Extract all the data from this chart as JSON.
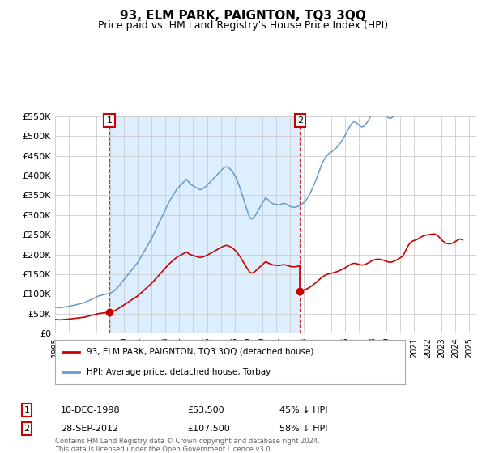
{
  "title": "93, ELM PARK, PAIGNTON, TQ3 3QQ",
  "subtitle": "Price paid vs. HM Land Registry's House Price Index (HPI)",
  "title_fontsize": 11,
  "subtitle_fontsize": 9,
  "ylim": [
    0,
    550000
  ],
  "yticks": [
    0,
    50000,
    100000,
    150000,
    200000,
    250000,
    300000,
    350000,
    400000,
    450000,
    500000,
    550000
  ],
  "ytick_labels": [
    "£0",
    "£50K",
    "£100K",
    "£150K",
    "£200K",
    "£250K",
    "£300K",
    "£350K",
    "£400K",
    "£450K",
    "£500K",
    "£550K"
  ],
  "xlim_start": 1995.0,
  "xlim_end": 2025.5,
  "sale1_x": 1998.94,
  "sale1_y": 53500,
  "sale2_x": 2012.74,
  "sale2_y": 107500,
  "property_line_color": "#cc0000",
  "hpi_line_color": "#6699cc",
  "shade_color": "#ddeeff",
  "background_color": "#ffffff",
  "grid_color": "#cccccc",
  "legend_property": "93, ELM PARK, PAIGNTON, TQ3 3QQ (detached house)",
  "legend_hpi": "HPI: Average price, detached house, Torbay",
  "footer1": "Contains HM Land Registry data © Crown copyright and database right 2024.",
  "footer2": "This data is licensed under the Open Government Licence v3.0.",
  "table_row1": [
    "1",
    "10-DEC-1998",
    "£53,500",
    "45% ↓ HPI"
  ],
  "table_row2": [
    "2",
    "28-SEP-2012",
    "£107,500",
    "58% ↓ HPI"
  ],
  "hpi_index": [
    [
      1995.0,
      47.2
    ],
    [
      1995.08,
      46.9
    ],
    [
      1995.17,
      46.7
    ],
    [
      1995.25,
      46.5
    ],
    [
      1995.33,
      46.3
    ],
    [
      1995.42,
      46.5
    ],
    [
      1995.5,
      46.8
    ],
    [
      1995.58,
      47.1
    ],
    [
      1995.67,
      47.4
    ],
    [
      1995.75,
      47.7
    ],
    [
      1995.83,
      48.0
    ],
    [
      1995.92,
      48.4
    ],
    [
      1996.0,
      48.8
    ],
    [
      1996.08,
      49.2
    ],
    [
      1996.17,
      49.6
    ],
    [
      1996.25,
      50.1
    ],
    [
      1996.33,
      50.6
    ],
    [
      1996.42,
      51.1
    ],
    [
      1996.5,
      51.6
    ],
    [
      1996.58,
      52.1
    ],
    [
      1996.67,
      52.6
    ],
    [
      1996.75,
      53.1
    ],
    [
      1996.83,
      53.6
    ],
    [
      1996.92,
      54.1
    ],
    [
      1997.0,
      54.6
    ],
    [
      1997.08,
      55.2
    ],
    [
      1997.17,
      55.8
    ],
    [
      1997.25,
      56.8
    ],
    [
      1997.33,
      57.8
    ],
    [
      1997.42,
      58.8
    ],
    [
      1997.5,
      59.8
    ],
    [
      1997.58,
      60.8
    ],
    [
      1997.67,
      61.8
    ],
    [
      1997.75,
      62.8
    ],
    [
      1997.83,
      63.8
    ],
    [
      1997.92,
      64.8
    ],
    [
      1998.0,
      65.8
    ],
    [
      1998.08,
      66.8
    ],
    [
      1998.17,
      67.8
    ],
    [
      1998.25,
      68.3
    ],
    [
      1998.33,
      68.8
    ],
    [
      1998.42,
      69.3
    ],
    [
      1998.5,
      69.8
    ],
    [
      1998.58,
      70.3
    ],
    [
      1998.67,
      70.8
    ],
    [
      1998.75,
      71.3
    ],
    [
      1998.83,
      71.8
    ],
    [
      1998.92,
      72.3
    ],
    [
      1999.0,
      72.8
    ],
    [
      1999.08,
      73.8
    ],
    [
      1999.17,
      74.8
    ],
    [
      1999.25,
      76.3
    ],
    [
      1999.33,
      78.0
    ],
    [
      1999.42,
      80.0
    ],
    [
      1999.5,
      82.3
    ],
    [
      1999.58,
      84.7
    ],
    [
      1999.67,
      87.2
    ],
    [
      1999.75,
      89.8
    ],
    [
      1999.83,
      92.4
    ],
    [
      1999.92,
      95.0
    ],
    [
      2000.0,
      97.6
    ],
    [
      2000.08,
      100.2
    ],
    [
      2000.17,
      102.8
    ],
    [
      2000.25,
      105.4
    ],
    [
      2000.33,
      108.0
    ],
    [
      2000.42,
      110.6
    ],
    [
      2000.5,
      113.2
    ],
    [
      2000.58,
      115.8
    ],
    [
      2000.67,
      118.4
    ],
    [
      2000.75,
      121.0
    ],
    [
      2000.83,
      123.6
    ],
    [
      2000.92,
      126.2
    ],
    [
      2001.0,
      128.8
    ],
    [
      2001.08,
      132.4
    ],
    [
      2001.17,
      136.0
    ],
    [
      2001.25,
      139.6
    ],
    [
      2001.33,
      143.2
    ],
    [
      2001.42,
      146.8
    ],
    [
      2001.5,
      150.4
    ],
    [
      2001.58,
      154.0
    ],
    [
      2001.67,
      157.6
    ],
    [
      2001.75,
      161.2
    ],
    [
      2001.83,
      164.8
    ],
    [
      2001.92,
      168.4
    ],
    [
      2002.0,
      172.0
    ],
    [
      2002.08,
      176.4
    ],
    [
      2002.17,
      180.8
    ],
    [
      2002.25,
      185.2
    ],
    [
      2002.33,
      189.6
    ],
    [
      2002.42,
      194.0
    ],
    [
      2002.5,
      198.4
    ],
    [
      2002.58,
      202.8
    ],
    [
      2002.67,
      207.2
    ],
    [
      2002.75,
      211.6
    ],
    [
      2002.83,
      216.0
    ],
    [
      2002.92,
      220.4
    ],
    [
      2003.0,
      224.8
    ],
    [
      2003.08,
      229.2
    ],
    [
      2003.17,
      233.6
    ],
    [
      2003.25,
      238.0
    ],
    [
      2003.33,
      241.4
    ],
    [
      2003.42,
      244.8
    ],
    [
      2003.5,
      248.2
    ],
    [
      2003.58,
      251.6
    ],
    [
      2003.67,
      255.0
    ],
    [
      2003.75,
      258.4
    ],
    [
      2003.83,
      261.8
    ],
    [
      2003.92,
      263.8
    ],
    [
      2004.0,
      265.8
    ],
    [
      2004.08,
      268.0
    ],
    [
      2004.17,
      270.2
    ],
    [
      2004.25,
      272.4
    ],
    [
      2004.33,
      274.6
    ],
    [
      2004.42,
      276.8
    ],
    [
      2004.5,
      279.0
    ],
    [
      2004.58,
      276.8
    ],
    [
      2004.67,
      274.0
    ],
    [
      2004.75,
      271.2
    ],
    [
      2004.83,
      269.6
    ],
    [
      2004.92,
      268.2
    ],
    [
      2005.0,
      267.0
    ],
    [
      2005.08,
      265.8
    ],
    [
      2005.17,
      264.6
    ],
    [
      2005.25,
      263.4
    ],
    [
      2005.33,
      262.2
    ],
    [
      2005.42,
      261.0
    ],
    [
      2005.5,
      260.0
    ],
    [
      2005.58,
      261.0
    ],
    [
      2005.67,
      262.0
    ],
    [
      2005.75,
      263.0
    ],
    [
      2005.83,
      264.6
    ],
    [
      2005.92,
      266.2
    ],
    [
      2006.0,
      267.8
    ],
    [
      2006.08,
      270.0
    ],
    [
      2006.17,
      272.2
    ],
    [
      2006.25,
      274.4
    ],
    [
      2006.33,
      276.6
    ],
    [
      2006.42,
      278.8
    ],
    [
      2006.5,
      281.0
    ],
    [
      2006.58,
      283.2
    ],
    [
      2006.67,
      285.4
    ],
    [
      2006.75,
      287.6
    ],
    [
      2006.83,
      289.8
    ],
    [
      2006.92,
      292.0
    ],
    [
      2007.0,
      294.2
    ],
    [
      2007.08,
      296.4
    ],
    [
      2007.17,
      298.6
    ],
    [
      2007.25,
      300.2
    ],
    [
      2007.33,
      301.2
    ],
    [
      2007.42,
      301.8
    ],
    [
      2007.5,
      301.0
    ],
    [
      2007.58,
      299.6
    ],
    [
      2007.67,
      297.8
    ],
    [
      2007.75,
      295.6
    ],
    [
      2007.83,
      293.0
    ],
    [
      2007.92,
      290.0
    ],
    [
      2008.0,
      286.6
    ],
    [
      2008.08,
      282.6
    ],
    [
      2008.17,
      278.0
    ],
    [
      2008.25,
      272.8
    ],
    [
      2008.33,
      267.2
    ],
    [
      2008.42,
      261.2
    ],
    [
      2008.5,
      255.0
    ],
    [
      2008.58,
      248.6
    ],
    [
      2008.67,
      242.0
    ],
    [
      2008.75,
      235.4
    ],
    [
      2008.83,
      228.8
    ],
    [
      2008.92,
      222.2
    ],
    [
      2009.0,
      215.8
    ],
    [
      2009.08,
      211.0
    ],
    [
      2009.17,
      208.0
    ],
    [
      2009.25,
      207.0
    ],
    [
      2009.33,
      208.0
    ],
    [
      2009.42,
      210.4
    ],
    [
      2009.5,
      213.6
    ],
    [
      2009.58,
      217.2
    ],
    [
      2009.67,
      220.8
    ],
    [
      2009.75,
      224.4
    ],
    [
      2009.83,
      228.0
    ],
    [
      2009.92,
      231.6
    ],
    [
      2010.0,
      235.2
    ],
    [
      2010.08,
      238.8
    ],
    [
      2010.17,
      242.4
    ],
    [
      2010.25,
      246.0
    ],
    [
      2010.33,
      244.0
    ],
    [
      2010.42,
      242.0
    ],
    [
      2010.5,
      240.0
    ],
    [
      2010.58,
      238.0
    ],
    [
      2010.67,
      236.4
    ],
    [
      2010.75,
      235.2
    ],
    [
      2010.83,
      234.4
    ],
    [
      2010.92,
      234.0
    ],
    [
      2011.0,
      233.6
    ],
    [
      2011.08,
      233.2
    ],
    [
      2011.17,
      232.8
    ],
    [
      2011.25,
      233.0
    ],
    [
      2011.33,
      233.8
    ],
    [
      2011.42,
      234.6
    ],
    [
      2011.5,
      235.4
    ],
    [
      2011.58,
      235.4
    ],
    [
      2011.67,
      234.8
    ],
    [
      2011.75,
      233.8
    ],
    [
      2011.83,
      232.6
    ],
    [
      2011.92,
      231.4
    ],
    [
      2012.0,
      230.2
    ],
    [
      2012.08,
      229.2
    ],
    [
      2012.17,
      228.6
    ],
    [
      2012.25,
      228.4
    ],
    [
      2012.33,
      228.4
    ],
    [
      2012.42,
      228.6
    ],
    [
      2012.5,
      229.2
    ],
    [
      2012.58,
      230.0
    ],
    [
      2012.67,
      231.0
    ],
    [
      2012.75,
      232.2
    ],
    [
      2012.83,
      233.6
    ],
    [
      2012.92,
      235.2
    ],
    [
      2013.0,
      236.8
    ],
    [
      2013.08,
      238.6
    ],
    [
      2013.17,
      241.0
    ],
    [
      2013.25,
      244.0
    ],
    [
      2013.33,
      247.4
    ],
    [
      2013.42,
      251.2
    ],
    [
      2013.5,
      255.4
    ],
    [
      2013.58,
      259.8
    ],
    [
      2013.67,
      264.4
    ],
    [
      2013.75,
      269.2
    ],
    [
      2013.83,
      274.2
    ],
    [
      2013.92,
      279.4
    ],
    [
      2014.0,
      284.8
    ],
    [
      2014.08,
      290.4
    ],
    [
      2014.17,
      296.2
    ],
    [
      2014.25,
      302.0
    ],
    [
      2014.33,
      307.8
    ],
    [
      2014.42,
      311.8
    ],
    [
      2014.5,
      315.4
    ],
    [
      2014.58,
      318.6
    ],
    [
      2014.67,
      321.4
    ],
    [
      2014.75,
      323.8
    ],
    [
      2014.83,
      325.8
    ],
    [
      2014.92,
      327.4
    ],
    [
      2015.0,
      328.6
    ],
    [
      2015.08,
      330.0
    ],
    [
      2015.17,
      331.6
    ],
    [
      2015.25,
      333.4
    ],
    [
      2015.33,
      335.4
    ],
    [
      2015.42,
      337.6
    ],
    [
      2015.5,
      340.0
    ],
    [
      2015.58,
      342.6
    ],
    [
      2015.67,
      345.4
    ],
    [
      2015.75,
      348.4
    ],
    [
      2015.83,
      351.6
    ],
    [
      2015.92,
      355.0
    ],
    [
      2016.0,
      358.6
    ],
    [
      2016.08,
      362.4
    ],
    [
      2016.17,
      366.4
    ],
    [
      2016.25,
      370.6
    ],
    [
      2016.33,
      374.4
    ],
    [
      2016.42,
      377.8
    ],
    [
      2016.5,
      380.6
    ],
    [
      2016.58,
      382.6
    ],
    [
      2016.67,
      383.2
    ],
    [
      2016.75,
      382.8
    ],
    [
      2016.83,
      381.4
    ],
    [
      2016.92,
      379.4
    ],
    [
      2017.0,
      377.2
    ],
    [
      2017.08,
      375.4
    ],
    [
      2017.17,
      374.2
    ],
    [
      2017.25,
      374.0
    ],
    [
      2017.33,
      374.8
    ],
    [
      2017.42,
      376.4
    ],
    [
      2017.5,
      378.8
    ],
    [
      2017.58,
      381.8
    ],
    [
      2017.67,
      385.2
    ],
    [
      2017.75,
      388.8
    ],
    [
      2017.83,
      392.4
    ],
    [
      2017.92,
      395.8
    ],
    [
      2018.0,
      398.8
    ],
    [
      2018.08,
      401.4
    ],
    [
      2018.17,
      403.4
    ],
    [
      2018.25,
      404.8
    ],
    [
      2018.33,
      405.6
    ],
    [
      2018.42,
      405.8
    ],
    [
      2018.5,
      405.4
    ],
    [
      2018.58,
      404.4
    ],
    [
      2018.67,
      402.8
    ],
    [
      2018.75,
      400.8
    ],
    [
      2018.83,
      398.6
    ],
    [
      2018.92,
      396.2
    ],
    [
      2019.0,
      393.8
    ],
    [
      2019.08,
      391.6
    ],
    [
      2019.17,
      390.0
    ],
    [
      2019.25,
      389.4
    ],
    [
      2019.33,
      389.8
    ],
    [
      2019.42,
      391.2
    ],
    [
      2019.5,
      393.4
    ],
    [
      2019.58,
      396.0
    ],
    [
      2019.67,
      399.0
    ],
    [
      2019.75,
      402.2
    ],
    [
      2019.83,
      405.8
    ],
    [
      2019.92,
      409.6
    ],
    [
      2020.0,
      413.6
    ],
    [
      2020.08,
      417.6
    ],
    [
      2020.17,
      421.6
    ],
    [
      2020.25,
      432.0
    ],
    [
      2020.33,
      445.0
    ],
    [
      2020.42,
      458.0
    ],
    [
      2020.5,
      470.0
    ],
    [
      2020.58,
      481.0
    ],
    [
      2020.67,
      490.0
    ],
    [
      2020.75,
      497.0
    ],
    [
      2020.83,
      502.0
    ],
    [
      2020.92,
      506.0
    ],
    [
      2021.0,
      508.0
    ],
    [
      2021.08,
      510.0
    ],
    [
      2021.17,
      512.0
    ],
    [
      2021.25,
      515.0
    ],
    [
      2021.33,
      519.0
    ],
    [
      2021.42,
      523.0
    ],
    [
      2021.5,
      527.0
    ],
    [
      2021.58,
      530.0
    ],
    [
      2021.67,
      533.0
    ],
    [
      2021.75,
      535.0
    ],
    [
      2021.83,
      537.0
    ],
    [
      2021.92,
      538.0
    ],
    [
      2022.0,
      539.0
    ],
    [
      2022.08,
      540.0
    ],
    [
      2022.17,
      541.0
    ],
    [
      2022.25,
      542.0
    ],
    [
      2022.33,
      543.0
    ],
    [
      2022.42,
      544.0
    ],
    [
      2022.5,
      543.0
    ],
    [
      2022.58,
      540.0
    ],
    [
      2022.67,
      536.0
    ],
    [
      2022.75,
      531.0
    ],
    [
      2022.83,
      525.0
    ],
    [
      2022.92,
      518.0
    ],
    [
      2023.0,
      511.0
    ],
    [
      2023.08,
      505.0
    ],
    [
      2023.17,
      500.0
    ],
    [
      2023.25,
      496.0
    ],
    [
      2023.33,
      493.0
    ],
    [
      2023.42,
      491.0
    ],
    [
      2023.5,
      490.0
    ],
    [
      2023.58,
      490.0
    ],
    [
      2023.67,
      491.0
    ],
    [
      2023.75,
      493.0
    ],
    [
      2023.83,
      496.0
    ],
    [
      2023.92,
      499.0
    ],
    [
      2024.0,
      503.0
    ],
    [
      2024.08,
      507.0
    ],
    [
      2024.17,
      511.0
    ],
    [
      2024.25,
      514.0
    ],
    [
      2024.33,
      516.0
    ],
    [
      2024.42,
      514.0
    ],
    [
      2024.5,
      511.0
    ]
  ]
}
